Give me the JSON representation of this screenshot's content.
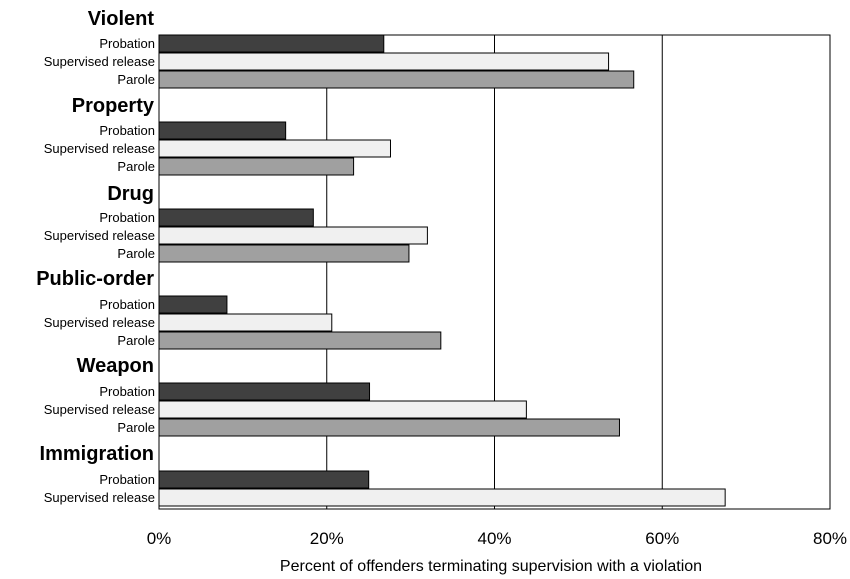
{
  "chart_data": {
    "type": "bar",
    "orientation": "horizontal",
    "xlabel": "Percent of offenders terminating supervision with a violation",
    "xlim": [
      0,
      80
    ],
    "x_ticks": [
      "0%",
      "20%",
      "40%",
      "60%",
      "80%"
    ],
    "grid": "vertical lines at 20%, 40%, 60%",
    "colors": {
      "Probation": "#404040",
      "Supervised release": "#f0f0f0",
      "Parole": "#a0a0a0"
    },
    "groups": [
      {
        "category": "Violent",
        "bars": [
          {
            "label": "Probation",
            "value": 26.8
          },
          {
            "label": "Supervised release",
            "value": 53.6
          },
          {
            "label": "Parole",
            "value": 56.6
          }
        ]
      },
      {
        "category": "Property",
        "bars": [
          {
            "label": "Probation",
            "value": 15.1
          },
          {
            "label": "Supervised release",
            "value": 27.6
          },
          {
            "label": "Parole",
            "value": 23.2
          }
        ]
      },
      {
        "category": "Drug",
        "bars": [
          {
            "label": "Probation",
            "value": 18.4
          },
          {
            "label": "Supervised release",
            "value": 32.0
          },
          {
            "label": "Parole",
            "value": 29.8
          }
        ]
      },
      {
        "category": "Public-order",
        "bars": [
          {
            "label": "Probation",
            "value": 8.1
          },
          {
            "label": "Supervised release",
            "value": 20.6
          },
          {
            "label": "Parole",
            "value": 33.6
          }
        ]
      },
      {
        "category": "Weapon",
        "bars": [
          {
            "label": "Probation",
            "value": 25.1
          },
          {
            "label": "Supervised release",
            "value": 43.8
          },
          {
            "label": "Parole",
            "value": 54.9
          }
        ]
      },
      {
        "category": "Immigration",
        "bars": [
          {
            "label": "Probation",
            "value": 25.0
          },
          {
            "label": "Supervised release",
            "value": 67.5
          }
        ]
      }
    ]
  }
}
